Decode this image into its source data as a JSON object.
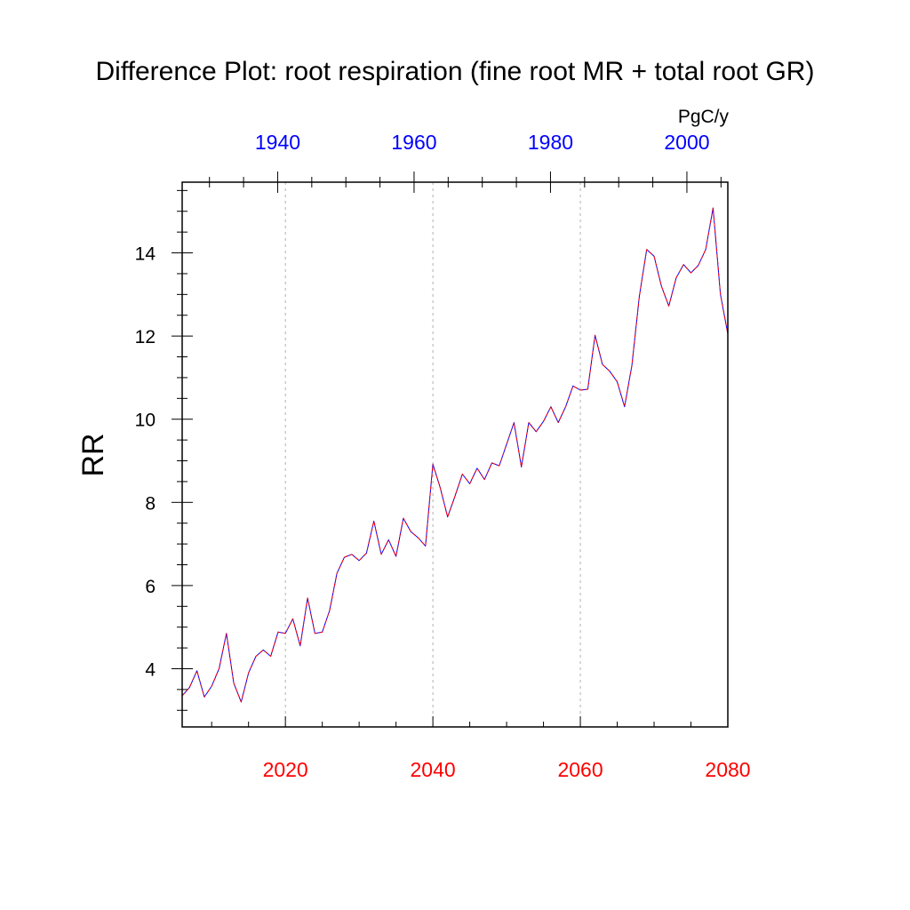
{
  "chart_data": {
    "type": "line",
    "title": "Difference Plot: root respiration (fine root MR + total root GR)",
    "ylabel": "RR",
    "units": "PgC/y",
    "ylim": [
      2.6,
      15.7
    ],
    "yticks": [
      4,
      6,
      8,
      10,
      12,
      14
    ],
    "grid": "vertical dotted lines at bottom-axis major ticks",
    "bottom_axis": {
      "range": [
        2006,
        2080
      ],
      "ticks": [
        2020,
        2040,
        2060,
        2080
      ],
      "tick_labels": [
        "2020",
        "2040",
        "2060",
        "2080"
      ],
      "color": "#ff0000"
    },
    "top_axis": {
      "range": [
        1926,
        2006
      ],
      "ticks": [
        1940,
        1960,
        1980,
        2000
      ],
      "tick_labels": [
        "1940",
        "1960",
        "1980",
        "2000"
      ],
      "color": "#0000ff"
    },
    "x": [
      2006,
      2007,
      2008,
      2009,
      2010,
      2011,
      2012,
      2013,
      2014,
      2015,
      2016,
      2017,
      2018,
      2019,
      2020,
      2021,
      2022,
      2023,
      2024,
      2025,
      2026,
      2027,
      2028,
      2029,
      2030,
      2031,
      2032,
      2033,
      2034,
      2035,
      2036,
      2037,
      2038,
      2039,
      2040,
      2041,
      2042,
      2043,
      2044,
      2045,
      2046,
      2047,
      2048,
      2049,
      2050,
      2051,
      2052,
      2053,
      2054,
      2055,
      2056,
      2057,
      2058,
      2059,
      2060,
      2061,
      2062,
      2063,
      2064,
      2065,
      2066,
      2067,
      2068,
      2069,
      2070,
      2071,
      2072,
      2073,
      2074,
      2075,
      2076,
      2077,
      2078,
      2079,
      2080
    ],
    "series": [
      {
        "color": "#ff0000",
        "dash": "dashed",
        "values": [
          3.35,
          3.55,
          3.95,
          3.32,
          3.58,
          4.0,
          4.85,
          3.65,
          3.2,
          3.9,
          4.3,
          4.45,
          4.3,
          4.88,
          4.85,
          5.2,
          4.55,
          5.7,
          4.85,
          4.88,
          5.4,
          6.3,
          6.68,
          6.75,
          6.6,
          6.78,
          7.55,
          6.75,
          7.1,
          6.7,
          7.62,
          7.3,
          7.15,
          6.95,
          8.92,
          8.35,
          7.65,
          8.15,
          8.68,
          8.45,
          8.82,
          8.55,
          8.95,
          8.88,
          9.4,
          9.92,
          8.85,
          9.92,
          9.7,
          9.95,
          10.3,
          9.92,
          10.3,
          10.8,
          10.7,
          10.72,
          12.02,
          11.32,
          11.15,
          10.9,
          10.3,
          11.3,
          12.95,
          14.08,
          13.92,
          13.2,
          12.72,
          13.4,
          13.72,
          13.52,
          13.7,
          14.08,
          15.08,
          13.0,
          12.05
        ]
      },
      {
        "color": "#0000ff",
        "dash": "solid",
        "values": [
          3.35,
          3.55,
          3.95,
          3.32,
          3.58,
          4.0,
          4.85,
          3.65,
          3.2,
          3.9,
          4.3,
          4.45,
          4.3,
          4.88,
          4.85,
          5.2,
          4.55,
          5.7,
          4.85,
          4.88,
          5.4,
          6.3,
          6.68,
          6.75,
          6.6,
          6.78,
          7.55,
          6.75,
          7.1,
          6.7,
          7.62,
          7.3,
          7.15,
          6.95,
          8.92,
          8.35,
          7.65,
          8.15,
          8.68,
          8.45,
          8.82,
          8.55,
          8.95,
          8.88,
          9.4,
          9.92,
          8.85,
          9.92,
          9.7,
          9.95,
          10.3,
          9.92,
          10.3,
          10.8,
          10.7,
          10.72,
          12.02,
          11.32,
          11.15,
          10.9,
          10.3,
          11.3,
          12.95,
          14.08,
          13.92,
          13.2,
          12.72,
          13.4,
          13.72,
          13.52,
          13.7,
          14.08,
          15.08,
          13.0,
          12.05
        ]
      }
    ]
  }
}
